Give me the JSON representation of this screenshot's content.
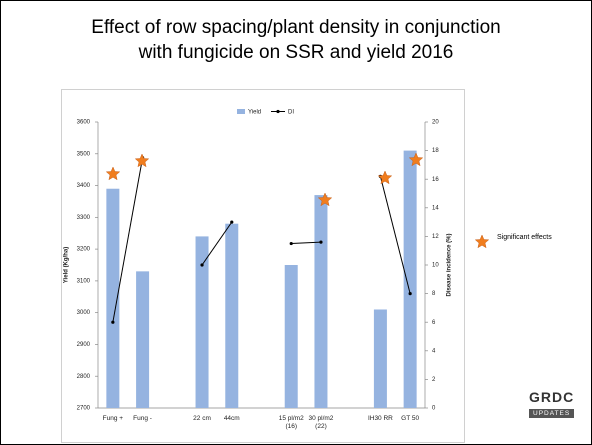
{
  "title_lines": [
    "Effect of row spacing/plant density in conjunction",
    "with fungicide on SSR and yield 2016"
  ],
  "chart_data": {
    "type": "bar",
    "categories": [
      "Fung +",
      "Fung -",
      null,
      "22 cm",
      "44cm",
      null,
      "15 pl/m2 (16)",
      "30 pl/m2 (22)",
      null,
      "IH30 RR",
      "GT 50"
    ],
    "series": [
      {
        "name": "Yield",
        "type": "bar",
        "color": "#95b3e0",
        "values": [
          3390,
          3130,
          null,
          3240,
          3280,
          null,
          3150,
          3370,
          null,
          3010,
          3510
        ]
      },
      {
        "name": "DI",
        "type": "line",
        "axis": "y2",
        "color": "#000000",
        "values": [
          6,
          17.5,
          null,
          10,
          13,
          null,
          11.5,
          11.6,
          null,
          16.2,
          8
        ]
      }
    ],
    "y_label": "Yield (Kg/ha)",
    "y2_label": "Disease incidence (%)",
    "ylim": [
      2700,
      3600
    ],
    "yticks": [
      2700,
      2800,
      2900,
      3000,
      3100,
      3200,
      3300,
      3400,
      3500,
      3600
    ],
    "y2lim": [
      0,
      20
    ],
    "y2ticks": [
      0,
      2,
      4,
      6,
      8,
      10,
      12,
      14,
      16,
      18,
      20
    ],
    "legend": "top"
  },
  "annotation": "Significant effects",
  "logo": {
    "name": "GRDC",
    "sub": "UPDATES"
  }
}
